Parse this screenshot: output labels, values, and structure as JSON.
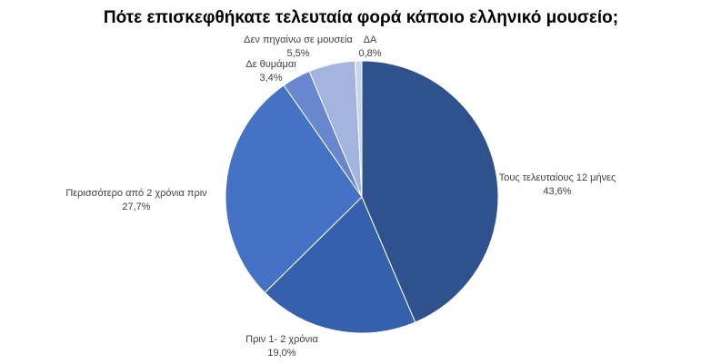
{
  "chart_data": {
    "type": "pie",
    "title": "Πότε επισκεφθήκατε τελευταία φορά κάποιο ελληνικό μουσείο;",
    "categories": [
      "Τους τελευταίους 12 μήνες",
      "Πριν 1- 2 χρόνια",
      "Περισσότερο από 2 χρόνια πριν",
      "Δε θυμάμαι",
      "Δεν πηγαίνω σε μουσεία",
      "ΔΑ"
    ],
    "values": [
      43.6,
      19.0,
      27.7,
      3.4,
      5.5,
      0.8
    ],
    "value_labels": [
      "43,6%",
      "19,0%",
      "27,7%",
      "3,4%",
      "5,5%",
      "0,8%"
    ],
    "colors": [
      "#2f528f",
      "#3560ac",
      "#4472c4",
      "#6987cf",
      "#a3b5de",
      "#c9d5ee"
    ]
  }
}
